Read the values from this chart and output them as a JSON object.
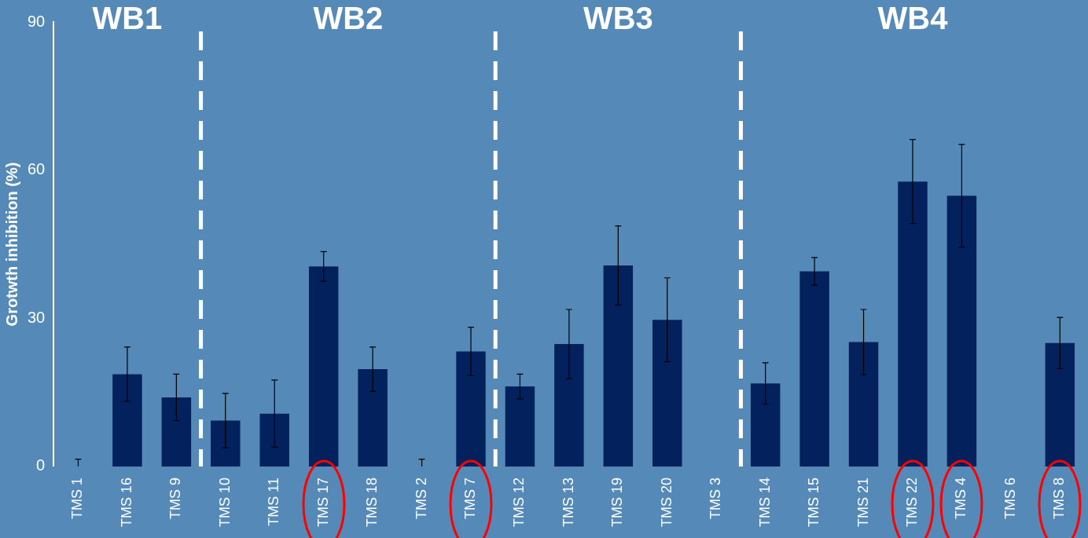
{
  "chart_data": {
    "type": "bar",
    "ylabel": "Grotwth inhibition (%)",
    "categories": [
      "TMS 1",
      "TMS 16",
      "TMS 9",
      "TMS 10",
      "TMS 11",
      "TMS 17",
      "TMS 18",
      "TMS 2",
      "TMS 7",
      "TMS 12",
      "TMS 13",
      "TMS 19",
      "TMS 20",
      "TMS 3",
      "TMS 14",
      "TMS 15",
      "TMS 21",
      "TMS 22",
      "TMS 4",
      "TMS 6",
      "TMS 8"
    ],
    "values": [
      0,
      18.7,
      14,
      9.3,
      10.7,
      40.5,
      19.7,
      0,
      23.3,
      16.2,
      24.8,
      40.7,
      29.7,
      0,
      16.8,
      39.5,
      25.2,
      57.7,
      54.8,
      0,
      25
    ],
    "errors": [
      1.5,
      5.5,
      4.7,
      5.5,
      6.8,
      3,
      4.5,
      1.5,
      4.9,
      2.5,
      7,
      8,
      8.5,
      null,
      4.2,
      2.8,
      6.6,
      8.5,
      10.4,
      null,
      5.2
    ],
    "color": "#03215c",
    "ylim": [
      0,
      90
    ],
    "yticks": [
      0,
      30,
      60,
      90
    ],
    "grid": false,
    "legend": false,
    "annotations": [
      "WB1",
      "WB2",
      "WB3",
      "WB4"
    ]
  }
}
